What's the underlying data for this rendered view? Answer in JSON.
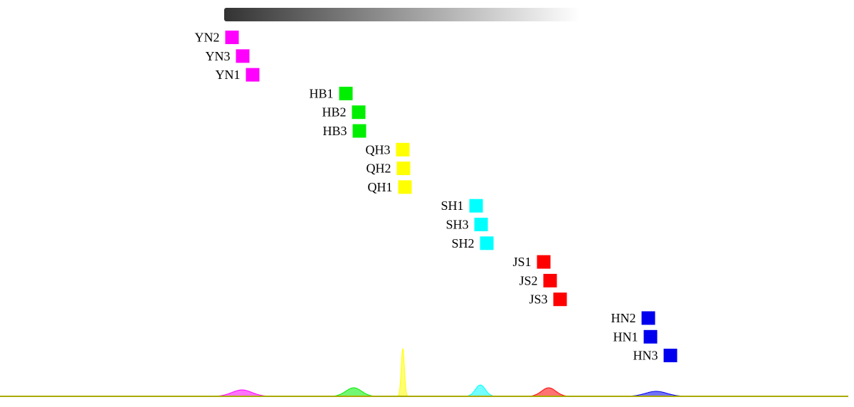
{
  "chart_data": {
    "type": "scatter",
    "title": "",
    "xlabel": "",
    "ylabel": "",
    "grid": false,
    "legend": "none",
    "color_scale": "dark-to-light gradient bar (top)",
    "groups": [
      {
        "group": "YN",
        "color": "#ff00ff",
        "samples": [
          {
            "label": "YN2",
            "x": 326
          },
          {
            "label": "YN3",
            "x": 341
          },
          {
            "label": "YN1",
            "x": 355
          }
        ]
      },
      {
        "group": "HB",
        "color": "#00ee00",
        "samples": [
          {
            "label": "HB1",
            "x": 486
          },
          {
            "label": "HB2",
            "x": 504
          },
          {
            "label": "HB3",
            "x": 505
          }
        ]
      },
      {
        "group": "QH",
        "color": "#ffff00",
        "samples": [
          {
            "label": "QH3",
            "x": 566
          },
          {
            "label": "QH2",
            "x": 567
          },
          {
            "label": "QH1",
            "x": 569
          }
        ]
      },
      {
        "group": "SH",
        "color": "#00ffff",
        "samples": [
          {
            "label": "SH1",
            "x": 669
          },
          {
            "label": "SH3",
            "x": 676
          },
          {
            "label": "SH2",
            "x": 684
          }
        ]
      },
      {
        "group": "JS",
        "color": "#ff0000",
        "samples": [
          {
            "label": "JS1",
            "x": 764
          },
          {
            "label": "JS2",
            "x": 773
          },
          {
            "label": "JS3",
            "x": 787
          }
        ]
      },
      {
        "group": "HN",
        "color": "#0000ee",
        "samples": [
          {
            "label": "HN2",
            "x": 911
          },
          {
            "label": "HN1",
            "x": 914
          },
          {
            "label": "HN3",
            "x": 942
          }
        ]
      }
    ],
    "density_curves": [
      {
        "group": "YN",
        "center": 340,
        "spread": 14,
        "peak": 9
      },
      {
        "group": "HB",
        "center": 497,
        "spread": 11,
        "peak": 12
      },
      {
        "group": "QH",
        "center": 566,
        "spread": 2.2,
        "peak": 67
      },
      {
        "group": "SH",
        "center": 675,
        "spread": 7,
        "peak": 16
      },
      {
        "group": "JS",
        "center": 771,
        "spread": 10,
        "peak": 12
      },
      {
        "group": "HN",
        "center": 922,
        "spread": 15,
        "peak": 7
      }
    ],
    "baseline_color": "#aaaa00"
  }
}
